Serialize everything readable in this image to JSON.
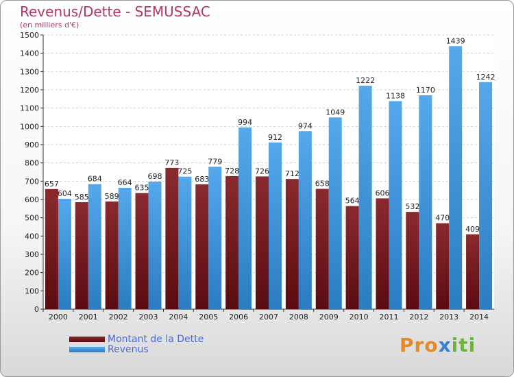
{
  "header": {
    "title": "Revenus/Dette - SEMUSSAC",
    "subtitle": "(en milliers d'€)"
  },
  "colors": {
    "debt": "#7a1f24",
    "revenue": "#3f93d8",
    "title": "#b8336a",
    "legend_text": "#4a6ad8"
  },
  "legend": {
    "placement": "bottom-left",
    "items": [
      {
        "label": "Montant de la Dette",
        "color": "#7a1f24"
      },
      {
        "label": "Revenus",
        "color": "#3f93d8"
      }
    ]
  },
  "logo": {
    "part1": "Pro",
    "part2": "x",
    "part3": "iti"
  },
  "chart_data": {
    "type": "bar",
    "title": "Revenus/Dette - SEMUSSAC",
    "ylabel": "(en milliers d'€)",
    "xlabel": "",
    "ylim": [
      0,
      1500
    ],
    "ytick_step": 100,
    "grid": true,
    "legend_placement": "bottom-left",
    "categories": [
      "2000",
      "2001",
      "2002",
      "2003",
      "2004",
      "2005",
      "2006",
      "2007",
      "2008",
      "2009",
      "2010",
      "2011",
      "2012",
      "2013",
      "2014"
    ],
    "series": [
      {
        "name": "Montant de la Dette",
        "values": [
          657,
          585,
          589,
          635,
          773,
          683,
          728,
          726,
          712,
          658,
          564,
          606,
          532,
          470,
          409
        ]
      },
      {
        "name": "Revenus",
        "values": [
          604,
          684,
          664,
          698,
          725,
          779,
          994,
          912,
          974,
          1049,
          1222,
          1138,
          1170,
          1439,
          1242
        ]
      }
    ]
  }
}
